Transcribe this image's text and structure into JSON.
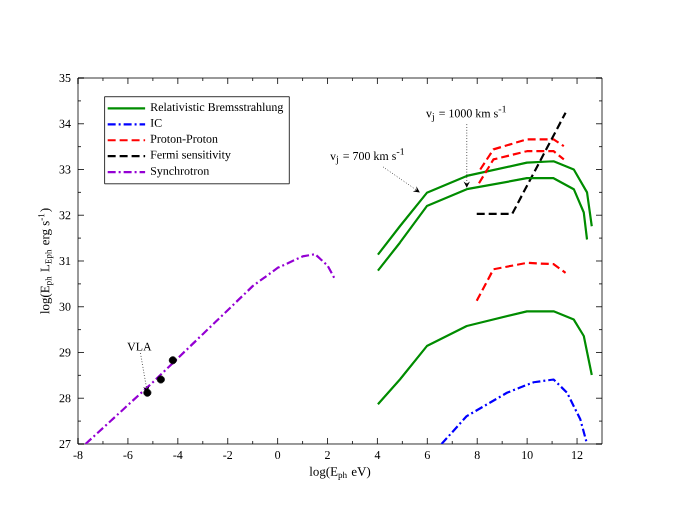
{
  "chart_data": {
    "type": "line",
    "xlabel": "log(E$_{ph}$ eV)",
    "ylabel": "log(E$_{ph}$ L$_{Eph}$ erg s$^{-1}$)",
    "xlim": [
      -8,
      13
    ],
    "ylim": [
      27,
      35
    ],
    "xticks": [
      -8,
      -6,
      -4,
      -2,
      0,
      2,
      4,
      6,
      8,
      10,
      12
    ],
    "yticks": [
      27,
      28,
      29,
      30,
      31,
      32,
      33,
      34,
      35
    ],
    "legend": "top left",
    "grid": false,
    "series": [
      {
        "name": "Relativistic Bremsstrahlung",
        "type": "line",
        "line_style": "solid",
        "color": "#008c00",
        "x": [
          4.02,
          4.9,
          5.98,
          7.58,
          9.99,
          11.06,
          11.87,
          12.4,
          12.59
        ],
        "values": [
          31.14,
          31.76,
          32.49,
          32.86,
          33.15,
          33.18,
          33.0,
          32.5,
          31.76
        ]
      },
      {
        "name": "IC",
        "type": "line",
        "line_style": "dashdot",
        "color": "#0000ff",
        "x": [
          6.57,
          7.58,
          9.19,
          10.26,
          11.06,
          11.6,
          12.13,
          12.4
        ],
        "values": [
          27.0,
          27.61,
          28.12,
          28.35,
          28.41,
          28.12,
          27.54,
          27.0
        ]
      },
      {
        "name": "Proton-Proton",
        "type": "line",
        "line_style": "dashed",
        "color": "#ff0000",
        "x": [
          8.12,
          8.65,
          9.99,
          11.06,
          11.47
        ],
        "values": [
          33.0,
          33.44,
          33.66,
          33.66,
          33.51
        ]
      },
      {
        "name": "Fermi sensitivity",
        "type": "line",
        "line_style": "dashed",
        "color": "#000000",
        "x": [
          7.98,
          9.4,
          11.54
        ],
        "values": [
          32.03,
          32.03,
          34.24
        ]
      },
      {
        "name": "Synchrotron",
        "type": "line",
        "line_style": "dashdot",
        "color": "#9400d3",
        "x": [
          -7.7,
          -5,
          -3,
          -1,
          0,
          1,
          1.5,
          2,
          2.3
        ],
        "values": [
          27.0,
          28.35,
          29.4,
          30.45,
          30.85,
          31.1,
          31.15,
          30.9,
          30.6
        ]
      },
      {
        "type": "line",
        "line_style": "solid",
        "color": "#008c00",
        "x": [
          4.02,
          4.9,
          5.98,
          7.58,
          9.99,
          11.06,
          11.87,
          12.27,
          12.4
        ],
        "values": [
          30.79,
          31.4,
          32.2,
          32.57,
          32.81,
          32.81,
          32.57,
          32.06,
          31.47
        ]
      },
      {
        "type": "line",
        "line_style": "solid",
        "color": "#008c00",
        "x": [
          4.02,
          4.9,
          5.98,
          7.58,
          9.99,
          11.06,
          11.87,
          12.27,
          12.59
        ],
        "values": [
          27.87,
          28.41,
          29.14,
          29.58,
          29.9,
          29.9,
          29.72,
          29.36,
          28.51
        ]
      },
      {
        "type": "line",
        "line_style": "dashed",
        "color": "#ff0000",
        "x": [
          8.07,
          8.65,
          9.99,
          11.06,
          11.47
        ],
        "values": [
          32.7,
          33.22,
          33.4,
          33.4,
          33.22
        ]
      },
      {
        "type": "line",
        "line_style": "dashed",
        "color": "#ff0000",
        "x": [
          7.98,
          8.65,
          9.99,
          11.06,
          11.54
        ],
        "values": [
          30.13,
          30.82,
          30.96,
          30.93,
          30.74
        ]
      },
      {
        "type": "scatter",
        "color": "#000000",
        "x": [
          -5.22,
          -4.68,
          -4.2
        ],
        "values": [
          28.12,
          28.41,
          28.83
        ]
      }
    ],
    "annotations": [
      {
        "text": "VLA",
        "x": -5.22,
        "y": 28.12
      },
      {
        "text": "v$_{j}$ = 700 km s$^{-1}$",
        "x": 5.7,
        "y": 32.5
      },
      {
        "text": "v$_{j}$ = 1000 km s$^{-1}$",
        "x": 7.58,
        "y": 32.6
      }
    ]
  }
}
